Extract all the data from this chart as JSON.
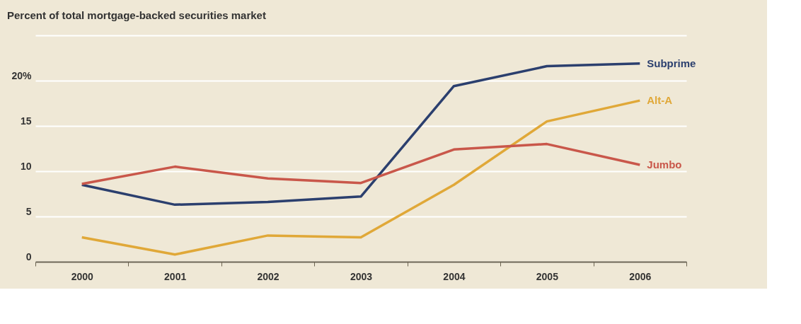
{
  "chart_data": {
    "type": "line",
    "title": "Percent of total mortgage-backed securities market",
    "categories": [
      "2000",
      "2001",
      "2002",
      "2003",
      "2004",
      "2005",
      "2006"
    ],
    "series": [
      {
        "name": "Subprime",
        "color": "#2b3f6e",
        "values": [
          8.5,
          6.3,
          6.6,
          7.2,
          19.4,
          21.6,
          21.9
        ]
      },
      {
        "name": "Alt-A",
        "color": "#e0a838",
        "values": [
          2.7,
          0.8,
          2.9,
          2.7,
          8.5,
          15.5,
          17.8
        ]
      },
      {
        "name": "Jumbo",
        "color": "#c9574a",
        "values": [
          8.6,
          10.5,
          9.2,
          8.7,
          12.4,
          13.0,
          10.7
        ]
      }
    ],
    "ylim": [
      0,
      25
    ],
    "yticks": [
      0,
      5,
      10,
      15,
      {
        "value": 20,
        "label": "20%"
      },
      {
        "value": 25,
        "label": null
      }
    ],
    "grid": "y",
    "marker": "none",
    "line_style": "solid"
  }
}
